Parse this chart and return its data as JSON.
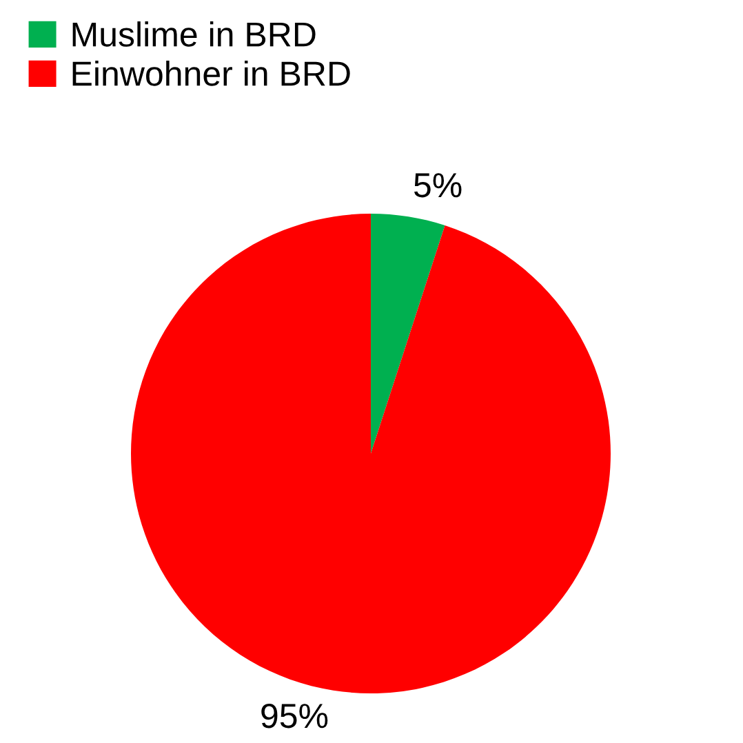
{
  "chart_data": {
    "type": "pie",
    "categories": [
      "Muslime in BRD",
      "Einwohner in BRD"
    ],
    "values": [
      5,
      95
    ],
    "colors": [
      "#00b050",
      "#ff0000"
    ],
    "value_labels": [
      "5%",
      "95%"
    ],
    "legend": "top left"
  }
}
